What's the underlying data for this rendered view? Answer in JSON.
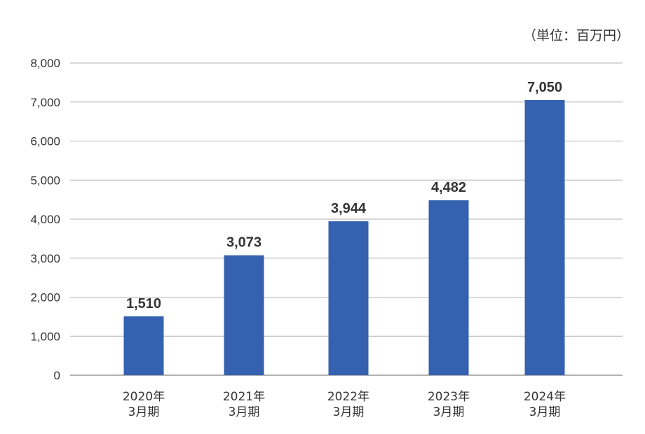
{
  "chart_data": {
    "type": "bar",
    "unit_label": "（単位：百万円）",
    "categories": [
      [
        "2020年",
        "3月期"
      ],
      [
        "2021年",
        "3月期"
      ],
      [
        "2022年",
        "3月期"
      ],
      [
        "2023年",
        "3月期"
      ],
      [
        "2024年",
        "3月期"
      ]
    ],
    "values": [
      1510,
      3073,
      3944,
      4482,
      7050
    ],
    "data_labels": [
      "1,510",
      "3,073",
      "3,944",
      "4,482",
      "7,050"
    ],
    "ylim": [
      0,
      8000
    ],
    "yticks": [
      0,
      1000,
      2000,
      3000,
      4000,
      5000,
      6000,
      7000,
      8000
    ],
    "ytick_labels": [
      "0",
      "1,000",
      "2,000",
      "3,000",
      "4,000",
      "5,000",
      "6,000",
      "7,000",
      "8,000"
    ],
    "grid": true,
    "legend": "none",
    "bar_color": "#3461b0",
    "grid_color": "#b0b0b0"
  }
}
